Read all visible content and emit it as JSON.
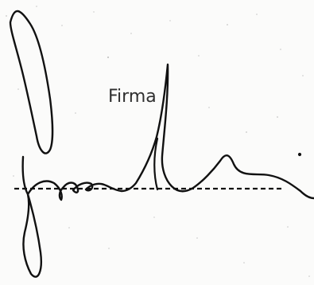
{
  "signature_field": {
    "label": "Firma"
  },
  "colors": {
    "ink": "#111111",
    "paper": "#fbfbfa",
    "label": "#2f2f2f"
  }
}
